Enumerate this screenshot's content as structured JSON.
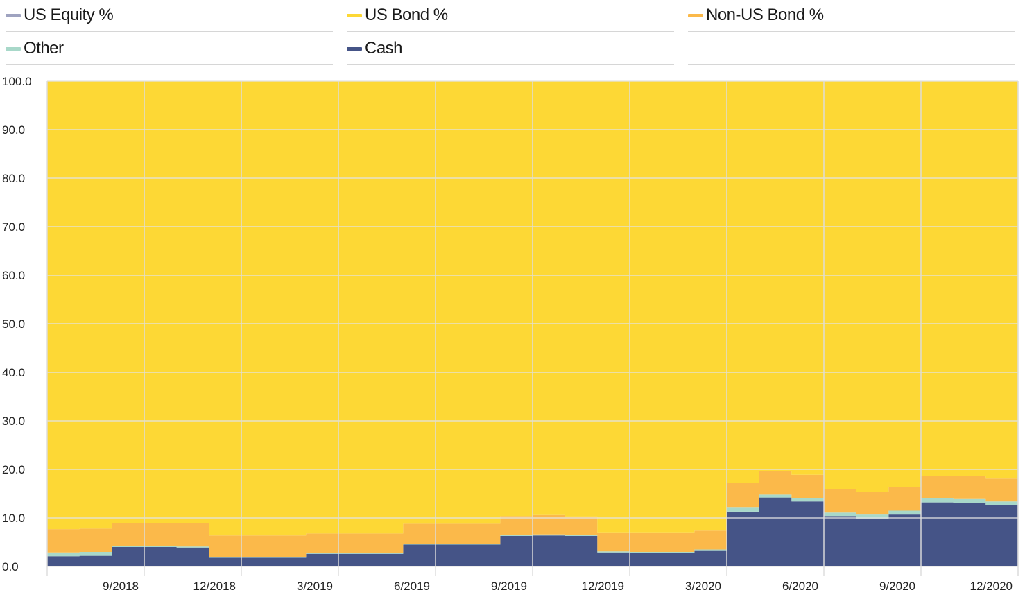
{
  "legend": [
    {
      "label": "US Equity %",
      "color": "#9fa3c0"
    },
    {
      "label": "US Bond %",
      "color": "#fdd835"
    },
    {
      "label": "Non-US Bond %",
      "color": "#fbb94a"
    },
    {
      "label": "Other",
      "color": "#a8d8c9"
    },
    {
      "label": "Cash",
      "color": "#455487"
    }
  ],
  "chart_data": {
    "type": "area",
    "step": true,
    "stacked": true,
    "ylim": [
      0,
      100
    ],
    "yticks": [
      "0.0",
      "10.0",
      "20.0",
      "30.0",
      "40.0",
      "50.0",
      "60.0",
      "70.0",
      "80.0",
      "90.0",
      "100.0"
    ],
    "xticks": [
      "9/2018",
      "12/2018",
      "3/2019",
      "6/2019",
      "9/2019",
      "12/2019",
      "3/2020",
      "6/2020",
      "9/2020",
      "12/2020"
    ],
    "x": [
      "7/2018",
      "8/2018",
      "9/2018",
      "10/2018",
      "11/2018",
      "12/2018",
      "1/2019",
      "2/2019",
      "3/2019",
      "4/2019",
      "5/2019",
      "6/2019",
      "7/2019",
      "8/2019",
      "9/2019",
      "10/2019",
      "11/2019",
      "12/2019",
      "1/2020",
      "2/2020",
      "3/2020",
      "4/2020",
      "5/2020",
      "6/2020",
      "7/2020",
      "8/2020",
      "9/2020",
      "10/2020",
      "11/2020",
      "12/2020"
    ],
    "series": [
      {
        "name": "Cash",
        "color": "#455487",
        "values": [
          2.1,
          2.2,
          4.0,
          4.0,
          3.9,
          1.8,
          1.8,
          1.8,
          2.6,
          2.6,
          2.6,
          4.5,
          4.5,
          4.5,
          6.3,
          6.4,
          6.3,
          2.9,
          2.8,
          2.8,
          3.2,
          11.3,
          14.2,
          13.4,
          10.4,
          9.9,
          10.7,
          13.2,
          13.0,
          12.6
        ]
      },
      {
        "name": "Other",
        "color": "#a8d8c9",
        "values": [
          0.8,
          0.8,
          0.2,
          0.2,
          0.2,
          0.2,
          0.2,
          0.2,
          0.2,
          0.2,
          0.2,
          0.2,
          0.2,
          0.2,
          0.2,
          0.2,
          0.2,
          0.2,
          0.2,
          0.2,
          0.3,
          0.8,
          0.6,
          0.7,
          0.7,
          0.8,
          0.8,
          0.8,
          0.9,
          0.8
        ]
      },
      {
        "name": "Non-US Bond %",
        "color": "#fbb94a",
        "values": [
          4.8,
          4.8,
          4.8,
          4.8,
          4.8,
          4.4,
          4.4,
          4.4,
          4.0,
          4.0,
          4.0,
          4.1,
          4.1,
          4.1,
          3.9,
          4.0,
          3.8,
          3.8,
          3.9,
          3.9,
          3.9,
          5.1,
          4.8,
          4.8,
          4.8,
          4.7,
          4.8,
          4.7,
          4.8,
          4.7
        ]
      },
      {
        "name": "US Bond %",
        "color": "#fdd835",
        "values": [
          92.3,
          92.2,
          91.0,
          91.0,
          91.1,
          93.6,
          93.6,
          93.6,
          93.2,
          93.2,
          93.2,
          91.2,
          91.2,
          91.2,
          89.6,
          89.4,
          89.7,
          93.1,
          93.1,
          93.1,
          92.6,
          82.8,
          80.4,
          81.1,
          84.1,
          84.6,
          83.7,
          81.3,
          81.3,
          81.9
        ]
      },
      {
        "name": "US Equity %",
        "color": "#9fa3c0",
        "values": [
          0,
          0,
          0,
          0,
          0,
          0,
          0,
          0,
          0,
          0,
          0,
          0,
          0,
          0,
          0,
          0,
          0,
          0,
          0,
          0,
          0,
          0,
          0,
          0,
          0,
          0,
          0,
          0,
          0,
          0
        ]
      }
    ]
  }
}
